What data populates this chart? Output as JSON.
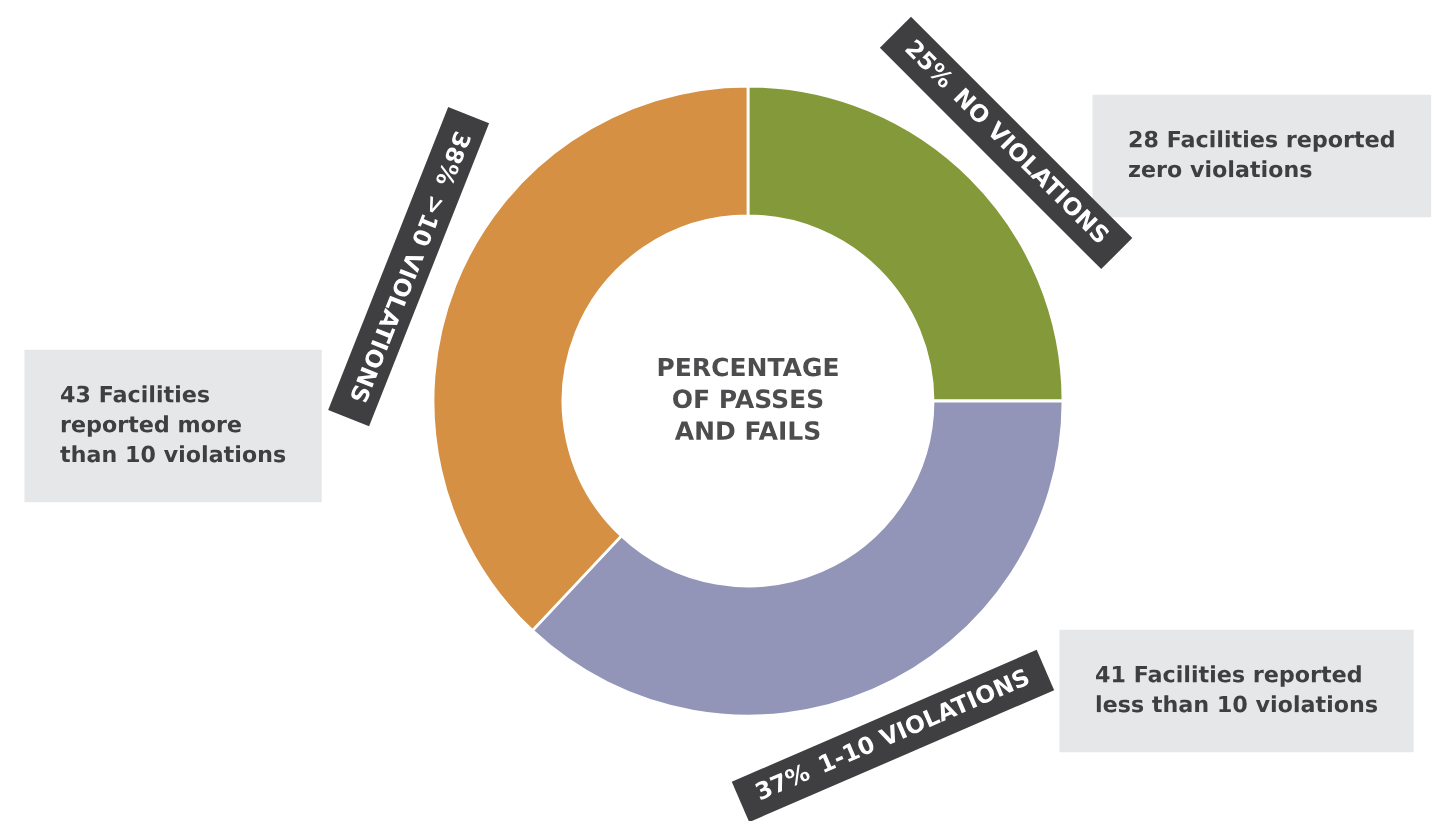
{
  "chart_data": {
    "type": "donut",
    "title": "PERCENTAGE\nOF PASSES\nAND FAILS",
    "categories": [
      "NO VIOLATIONS",
      "1-10 VIOLATIONS",
      ">10 VIOLATIONS"
    ],
    "values": [
      25,
      37,
      38
    ],
    "colors": [
      "#84993a",
      "#9395b8",
      "#d69043"
    ],
    "value_labels": [
      "25%",
      "37%",
      "38%"
    ],
    "annotations": [
      "28 Facilities reported\nzero violations",
      "41 Facilities reported\nless than 10 violations",
      "43 Facilities\nreported more\nthan 10 violations"
    ]
  }
}
